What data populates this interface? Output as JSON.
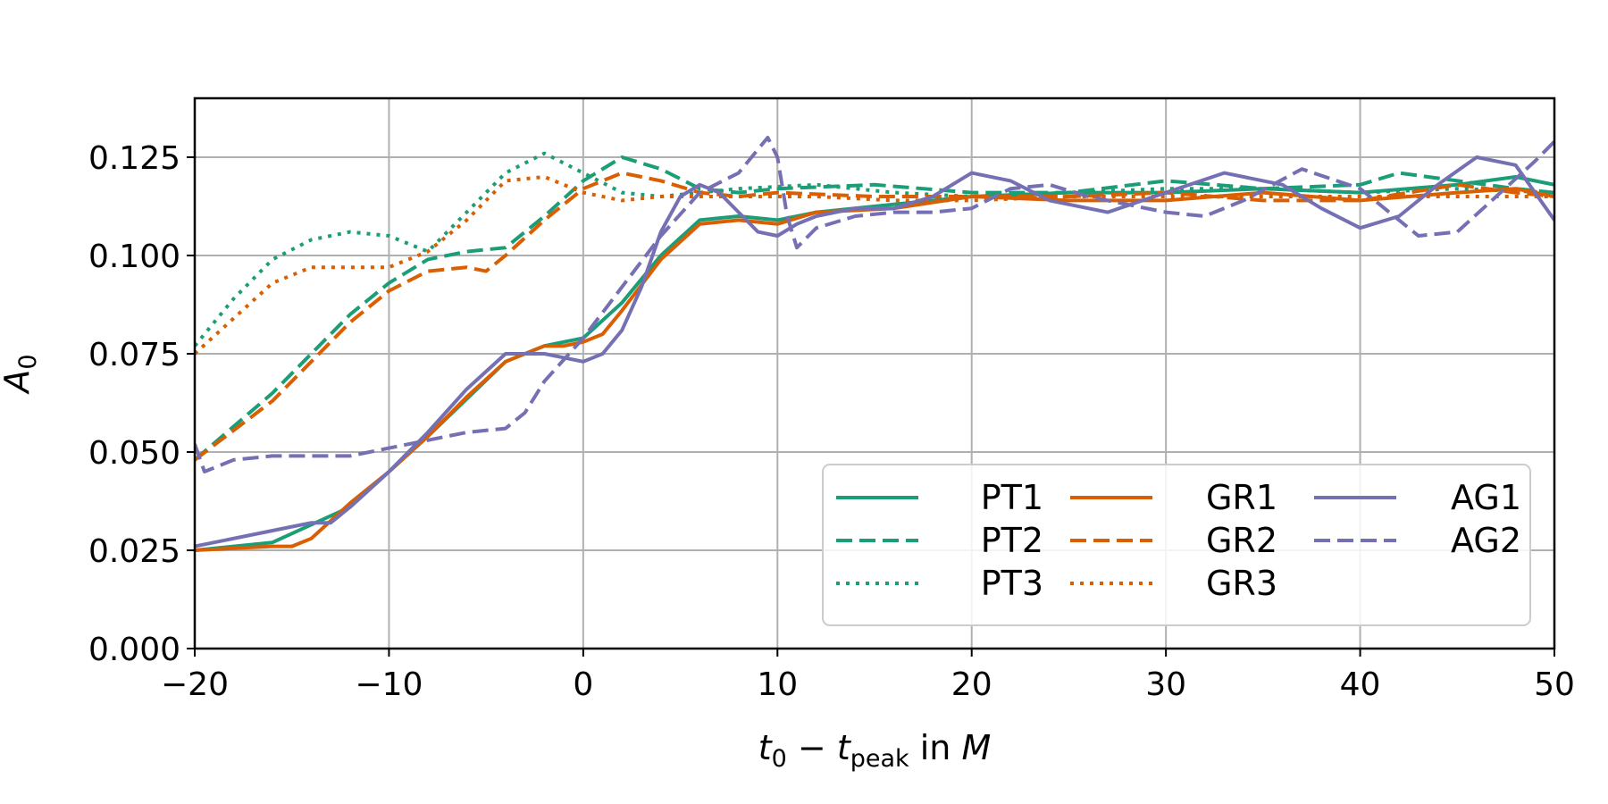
{
  "chart_data": {
    "type": "line",
    "title": "",
    "xlabel_parts": [
      "t",
      "0",
      " − ",
      "t",
      "peak",
      " in ",
      "M"
    ],
    "ylabel_parts": [
      "A",
      "0"
    ],
    "xlim": [
      -20,
      50
    ],
    "ylim": [
      0,
      0.14
    ],
    "xticks": [
      -20,
      -10,
      0,
      10,
      20,
      30,
      40,
      50
    ],
    "xtick_labels": [
      "−20",
      "−10",
      "0",
      "10",
      "20",
      "30",
      "40",
      "50"
    ],
    "yticks": [
      0,
      0.025,
      0.05,
      0.075,
      0.1,
      0.125
    ],
    "ytick_labels": [
      "0.000",
      "0.025",
      "0.050",
      "0.075",
      "0.100",
      "0.125"
    ],
    "grid": true,
    "legend_position": "lower-right",
    "legend_columns": 3,
    "colors": {
      "PT": "#1b9e77",
      "GR": "#d95f02",
      "AG": "#7570b3"
    },
    "series": [
      {
        "name": "PT1",
        "color": "#1b9e77",
        "dash": "solid",
        "x": [
          -20,
          -16,
          -12,
          -8,
          -4,
          -2,
          0,
          2,
          4,
          6,
          8,
          10,
          12,
          16,
          20,
          25,
          30,
          35,
          40,
          45,
          48,
          50
        ],
        "y": [
          0.025,
          0.027,
          0.036,
          0.054,
          0.073,
          0.077,
          0.079,
          0.088,
          0.1,
          0.109,
          0.11,
          0.109,
          0.111,
          0.113,
          0.115,
          0.116,
          0.116,
          0.117,
          0.116,
          0.118,
          0.12,
          0.118
        ]
      },
      {
        "name": "PT2",
        "color": "#1b9e77",
        "dash": "dashed",
        "x": [
          -20,
          -16,
          -12,
          -10,
          -8,
          -6,
          -4,
          -2,
          0,
          2,
          4,
          6,
          8,
          10,
          15,
          20,
          25,
          30,
          35,
          40,
          42,
          45,
          48,
          50
        ],
        "y": [
          0.048,
          0.065,
          0.085,
          0.093,
          0.099,
          0.101,
          0.102,
          0.11,
          0.119,
          0.125,
          0.122,
          0.117,
          0.116,
          0.117,
          0.118,
          0.116,
          0.116,
          0.119,
          0.117,
          0.118,
          0.121,
          0.119,
          0.117,
          0.116
        ]
      },
      {
        "name": "PT3",
        "color": "#1b9e77",
        "dash": "dotted",
        "x": [
          -20,
          -18,
          -16,
          -14,
          -12,
          -10,
          -8,
          -6,
          -4,
          -2,
          0,
          2,
          4,
          8,
          12,
          16,
          20,
          25,
          30,
          35,
          40,
          45,
          50
        ],
        "y": [
          0.077,
          0.089,
          0.099,
          0.104,
          0.106,
          0.105,
          0.101,
          0.111,
          0.121,
          0.126,
          0.121,
          0.116,
          0.115,
          0.117,
          0.118,
          0.116,
          0.115,
          0.116,
          0.117,
          0.117,
          0.116,
          0.117,
          0.116
        ]
      },
      {
        "name": "GR1",
        "color": "#d95f02",
        "dash": "solid",
        "x": [
          -20,
          -16,
          -15,
          -14,
          -12,
          -10,
          -8,
          -6,
          -4,
          -2,
          -1,
          0,
          1,
          2,
          4,
          6,
          8,
          10,
          12,
          16,
          20,
          25,
          30,
          35,
          40,
          45,
          48,
          50
        ],
        "y": [
          0.025,
          0.026,
          0.026,
          0.028,
          0.037,
          0.045,
          0.054,
          0.064,
          0.073,
          0.077,
          0.077,
          0.078,
          0.08,
          0.086,
          0.099,
          0.108,
          0.109,
          0.108,
          0.111,
          0.112,
          0.115,
          0.114,
          0.114,
          0.116,
          0.114,
          0.116,
          0.117,
          0.115
        ]
      },
      {
        "name": "GR2",
        "color": "#d95f02",
        "dash": "dashed",
        "x": [
          -20,
          -16,
          -12,
          -10,
          -8,
          -6,
          -5,
          -4,
          -2,
          0,
          2,
          4,
          6,
          8,
          10,
          15,
          20,
          25,
          30,
          35,
          40,
          45,
          48,
          50
        ],
        "y": [
          0.048,
          0.063,
          0.083,
          0.091,
          0.096,
          0.097,
          0.096,
          0.1,
          0.109,
          0.117,
          0.121,
          0.119,
          0.116,
          0.115,
          0.116,
          0.115,
          0.115,
          0.115,
          0.116,
          0.114,
          0.114,
          0.118,
          0.116,
          0.115
        ]
      },
      {
        "name": "GR3",
        "color": "#d95f02",
        "dash": "dotted",
        "x": [
          -20,
          -18,
          -16,
          -14,
          -12,
          -10,
          -8,
          -6,
          -4,
          -2,
          0,
          2,
          4,
          8,
          12,
          16,
          20,
          25,
          30,
          35,
          40,
          45,
          50
        ],
        "y": [
          0.075,
          0.084,
          0.093,
          0.097,
          0.097,
          0.097,
          0.101,
          0.109,
          0.119,
          0.12,
          0.116,
          0.114,
          0.115,
          0.115,
          0.115,
          0.114,
          0.114,
          0.115,
          0.115,
          0.115,
          0.115,
          0.115,
          0.115
        ]
      },
      {
        "name": "AG1",
        "color": "#7570b3",
        "dash": "solid",
        "x": [
          -20,
          -16,
          -14,
          -13,
          -12,
          -10,
          -8,
          -6,
          -4,
          -2,
          0,
          1,
          2,
          3,
          4,
          5,
          6,
          7,
          8,
          9,
          10,
          11,
          12,
          14,
          16,
          18,
          20,
          22,
          24,
          27,
          30,
          33,
          36,
          38,
          40,
          42,
          44,
          46,
          48,
          50
        ],
        "y": [
          0.026,
          0.03,
          0.032,
          0.032,
          0.036,
          0.045,
          0.055,
          0.066,
          0.075,
          0.075,
          0.073,
          0.075,
          0.081,
          0.092,
          0.106,
          0.115,
          0.118,
          0.116,
          0.111,
          0.106,
          0.105,
          0.108,
          0.11,
          0.112,
          0.112,
          0.115,
          0.121,
          0.119,
          0.114,
          0.111,
          0.116,
          0.121,
          0.118,
          0.112,
          0.107,
          0.11,
          0.118,
          0.125,
          0.123,
          0.109
        ]
      },
      {
        "name": "AG2",
        "color": "#7570b3",
        "dash": "dashed",
        "x": [
          -20,
          -19.5,
          -18,
          -16,
          -14,
          -12,
          -10,
          -8,
          -6,
          -4,
          -3,
          -2,
          0,
          2,
          4,
          6,
          8,
          9,
          9.5,
          10,
          10.5,
          11,
          12,
          14,
          16,
          18,
          20,
          22,
          24,
          26,
          28,
          30,
          32,
          34,
          37,
          40,
          43,
          45,
          47,
          49,
          50
        ],
        "y": [
          0.052,
          0.045,
          0.048,
          0.049,
          0.049,
          0.049,
          0.051,
          0.053,
          0.055,
          0.056,
          0.06,
          0.068,
          0.079,
          0.092,
          0.105,
          0.116,
          0.121,
          0.127,
          0.13,
          0.125,
          0.11,
          0.102,
          0.107,
          0.11,
          0.111,
          0.111,
          0.112,
          0.117,
          0.118,
          0.115,
          0.113,
          0.111,
          0.11,
          0.114,
          0.122,
          0.117,
          0.105,
          0.106,
          0.115,
          0.124,
          0.129
        ]
      }
    ]
  }
}
